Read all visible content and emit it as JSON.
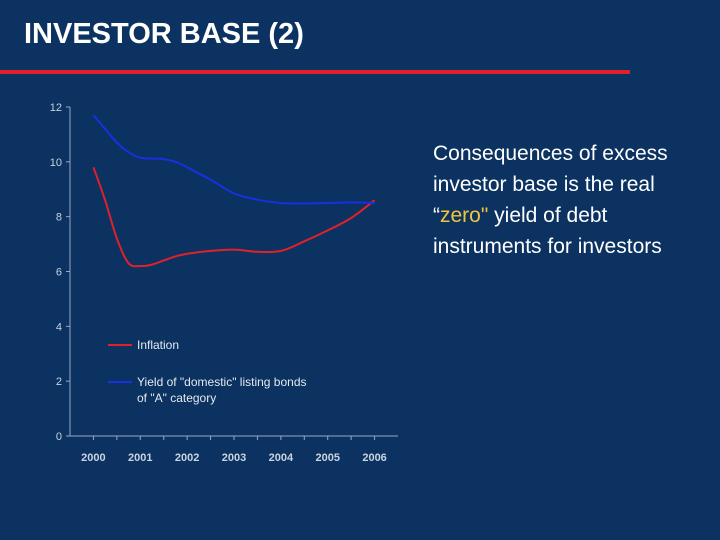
{
  "slide": {
    "title": "INVESTOR BASE (2)"
  },
  "side_text": {
    "before": "Consequences of excess investor base is the real “",
    "highlight": "zero\"",
    "after": " yield of debt instruments for investors"
  },
  "colors": {
    "background": "#0b3260",
    "title_rule": "#e0202a",
    "inflation_line": "#e0202a",
    "yield_line": "#1a2fe0",
    "highlight": "#f2c43b"
  },
  "chart_data": {
    "type": "line",
    "x": [
      2000,
      2000.25,
      2000.5,
      2000.75,
      2001,
      2001.25,
      2001.5,
      2001.75,
      2002,
      2002.5,
      2003,
      2003.5,
      2004,
      2004.5,
      2005,
      2005.5,
      2006
    ],
    "series": [
      {
        "name": "Inflation",
        "color": "#e0202a",
        "values": [
          9.8,
          8.6,
          7.2,
          6.3,
          6.2,
          6.25,
          6.4,
          6.55,
          6.65,
          6.75,
          6.8,
          6.72,
          6.75,
          7.1,
          7.5,
          7.95,
          8.6
        ]
      },
      {
        "name": "Yield of \"domestic\" listing bonds of \"A\" category",
        "name_lines": [
          "Yield of \"domestic\" listing bonds",
          "of \"A\" category"
        ],
        "color": "#1a2fe0",
        "values": [
          11.7,
          11.2,
          10.7,
          10.35,
          10.15,
          10.12,
          10.1,
          10.0,
          9.8,
          9.35,
          8.85,
          8.62,
          8.5,
          8.48,
          8.5,
          8.52,
          8.5
        ]
      }
    ],
    "x_ticks": [
      "2000",
      "2001",
      "2002",
      "2003",
      "2004",
      "2005",
      "2006"
    ],
    "y_ticks": [
      "0",
      "2",
      "4",
      "6",
      "8",
      "10",
      "12"
    ],
    "xlim": [
      1999.5,
      2006.5
    ],
    "ylim": [
      0,
      12
    ],
    "legend_position": "lower-left inside plot",
    "grid": false
  }
}
